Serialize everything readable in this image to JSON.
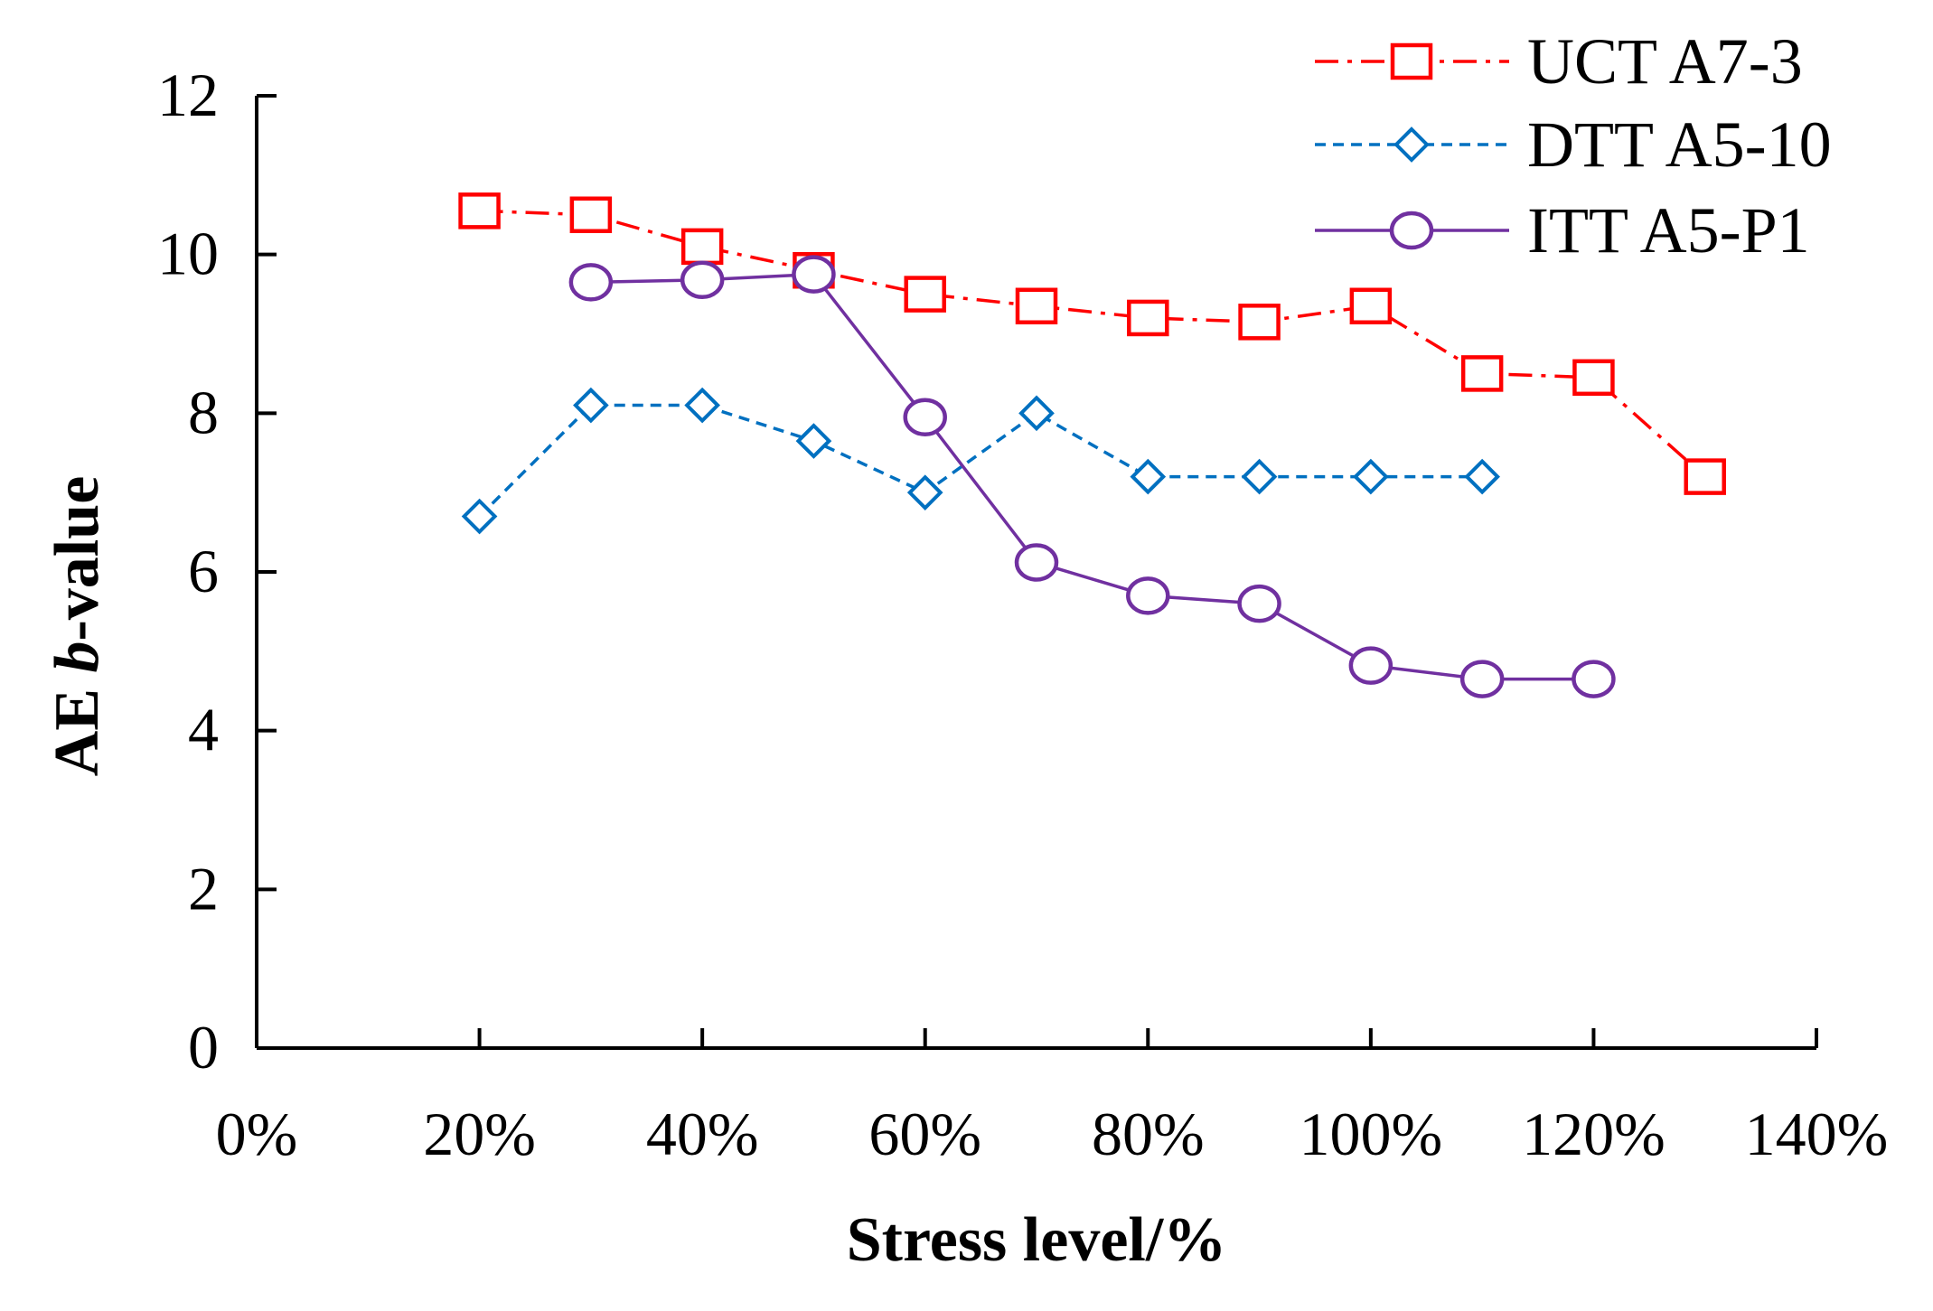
{
  "chart_data": {
    "type": "line",
    "title": "",
    "xlabel": "Stress level/%",
    "ylabel": {
      "prefix": "AE ",
      "italic": "b",
      "suffix": "-value"
    },
    "xlim": [
      0,
      140
    ],
    "ylim": [
      0,
      12
    ],
    "xticks": [
      0,
      20,
      40,
      60,
      80,
      100,
      120,
      140
    ],
    "xtick_labels": [
      "0%",
      "20%",
      "40%",
      "60%",
      "80%",
      "100%",
      "120%",
      "140%"
    ],
    "yticks": [
      0,
      2,
      4,
      6,
      8,
      10,
      12
    ],
    "ytick_labels": [
      "0",
      "2",
      "4",
      "6",
      "8",
      "10",
      "12"
    ],
    "grid": false,
    "legend_position": "top-right",
    "series": [
      {
        "name": "UCT A7-3",
        "color": "#ff0000",
        "line_style": "dash-dot",
        "marker": "square",
        "x": [
          20,
          30,
          40,
          50,
          60,
          70,
          80,
          90,
          100,
          110,
          120,
          130
        ],
        "y": [
          10.55,
          10.5,
          10.1,
          9.8,
          9.5,
          9.35,
          9.2,
          9.15,
          9.35,
          8.5,
          8.45,
          7.2
        ]
      },
      {
        "name": "DTT A5-10",
        "color": "#0070c0",
        "line_style": "dashed",
        "marker": "diamond",
        "x": [
          20,
          30,
          40,
          50,
          60,
          70,
          80,
          90,
          100,
          110
        ],
        "y": [
          6.7,
          8.1,
          8.1,
          7.65,
          7.0,
          8.0,
          7.2,
          7.2,
          7.2,
          7.2
        ]
      },
      {
        "name": "ITT A5-P1",
        "color": "#7030a0",
        "line_style": "solid",
        "marker": "circle",
        "x": [
          30,
          40,
          50,
          60,
          70,
          80,
          90,
          100,
          110,
          120
        ],
        "y": [
          9.65,
          9.68,
          9.75,
          7.95,
          6.12,
          5.7,
          5.6,
          4.82,
          4.65,
          4.65
        ]
      }
    ]
  }
}
